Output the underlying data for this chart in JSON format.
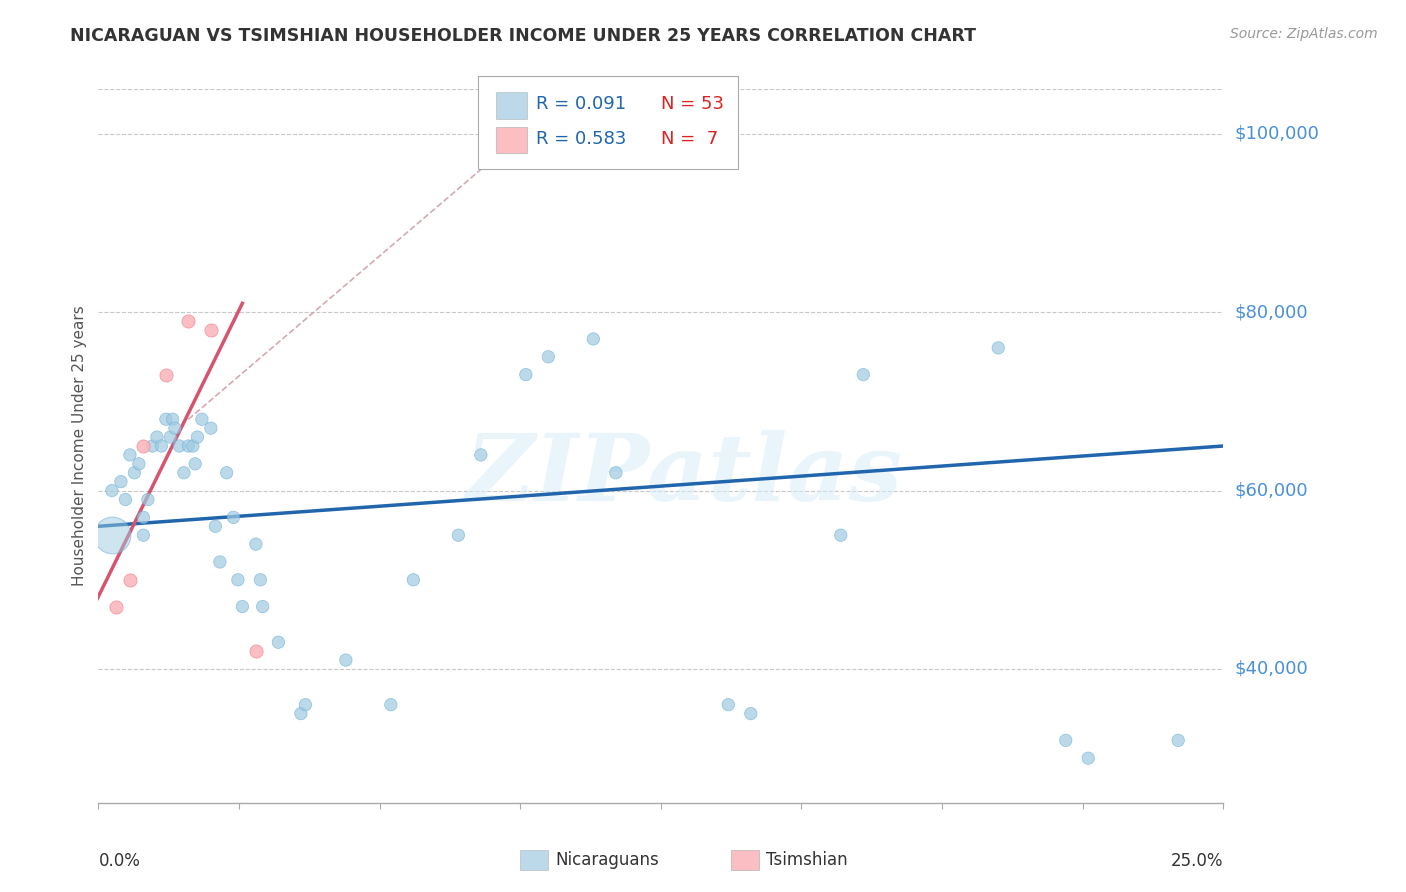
{
  "title": "NICARAGUAN VS TSIMSHIAN HOUSEHOLDER INCOME UNDER 25 YEARS CORRELATION CHART",
  "source": "Source: ZipAtlas.com",
  "ylabel": "Householder Income Under 25 years",
  "xmin": 0.0,
  "xmax": 25.0,
  "ymin": 25000,
  "ymax": 105000,
  "yticks": [
    40000,
    60000,
    80000,
    100000
  ],
  "ytick_labels": [
    "$40,000",
    "$60,000",
    "$80,000",
    "$100,000"
  ],
  "watermark": "ZIPatlas",
  "legend_R1": "R = 0.091",
  "legend_N1": "N = 53",
  "legend_R2": "R = 0.583",
  "legend_N2": "N =  7",
  "blue_color": "#9ecae1",
  "pink_color": "#fbb4b9",
  "line_blue": "#2166ac",
  "line_pink": "#d6546e",
  "line_diagonal": "#d0a0a8",
  "grid_color": "#c8c8c8",
  "title_color": "#333333",
  "axis_label_color": "#4a90d9",
  "legend_R_color": "#2166ac",
  "legend_N_color": "#dd2222",
  "legend_text_color": "#333333",
  "nicaraguan_x": [
    0.3,
    0.5,
    0.6,
    0.7,
    0.8,
    0.9,
    1.0,
    1.0,
    1.1,
    1.2,
    1.3,
    1.4,
    1.5,
    1.6,
    1.65,
    1.7,
    1.8,
    1.9,
    2.0,
    2.1,
    2.15,
    2.2,
    2.3,
    2.5,
    2.6,
    2.7,
    2.85,
    3.0,
    3.1,
    3.2,
    3.5,
    3.6,
    3.65,
    4.0,
    4.5,
    4.6,
    5.5,
    6.5,
    7.0,
    8.0,
    8.5,
    9.5,
    10.0,
    11.0,
    11.5,
    14.0,
    14.5,
    16.5,
    17.0,
    20.0,
    21.5,
    22.0,
    24.0
  ],
  "nicaraguan_y": [
    60000,
    61000,
    59000,
    64000,
    62000,
    63000,
    57000,
    55000,
    59000,
    65000,
    66000,
    65000,
    68000,
    66000,
    68000,
    67000,
    65000,
    62000,
    65000,
    65000,
    63000,
    66000,
    68000,
    67000,
    56000,
    52000,
    62000,
    57000,
    50000,
    47000,
    54000,
    50000,
    47000,
    43000,
    35000,
    36000,
    41000,
    36000,
    50000,
    55000,
    64000,
    73000,
    75000,
    77000,
    62000,
    36000,
    35000,
    55000,
    73000,
    76000,
    32000,
    30000,
    32000
  ],
  "nicaraguan_sizes": [
    80,
    80,
    80,
    80,
    80,
    80,
    80,
    80,
    80,
    80,
    80,
    80,
    80,
    80,
    80,
    80,
    80,
    80,
    80,
    80,
    80,
    80,
    80,
    80,
    80,
    80,
    80,
    80,
    80,
    80,
    80,
    80,
    80,
    80,
    80,
    80,
    80,
    80,
    80,
    80,
    80,
    80,
    80,
    80,
    80,
    80,
    80,
    80,
    80,
    80,
    80,
    80,
    80
  ],
  "nicaraguan_x_big": [
    0.3
  ],
  "nicaraguan_y_big": [
    55000
  ],
  "nicaraguan_size_big": [
    700
  ],
  "tsimshian_x": [
    0.4,
    0.7,
    1.0,
    1.5,
    2.0,
    2.5,
    3.5
  ],
  "tsimshian_y": [
    47000,
    50000,
    65000,
    73000,
    79000,
    78000,
    42000
  ],
  "blue_line_x": [
    0.0,
    25.0
  ],
  "blue_line_y": [
    56000,
    65000
  ],
  "pink_line_x": [
    -0.5,
    3.2
  ],
  "pink_line_y": [
    43000,
    81000
  ],
  "diag_line_x": [
    2.0,
    8.5
  ],
  "diag_line_y": [
    68000,
    96000
  ],
  "xtick_positions": [
    0.0,
    3.125,
    6.25,
    9.375,
    12.5,
    15.625,
    18.75,
    21.875,
    25.0
  ]
}
